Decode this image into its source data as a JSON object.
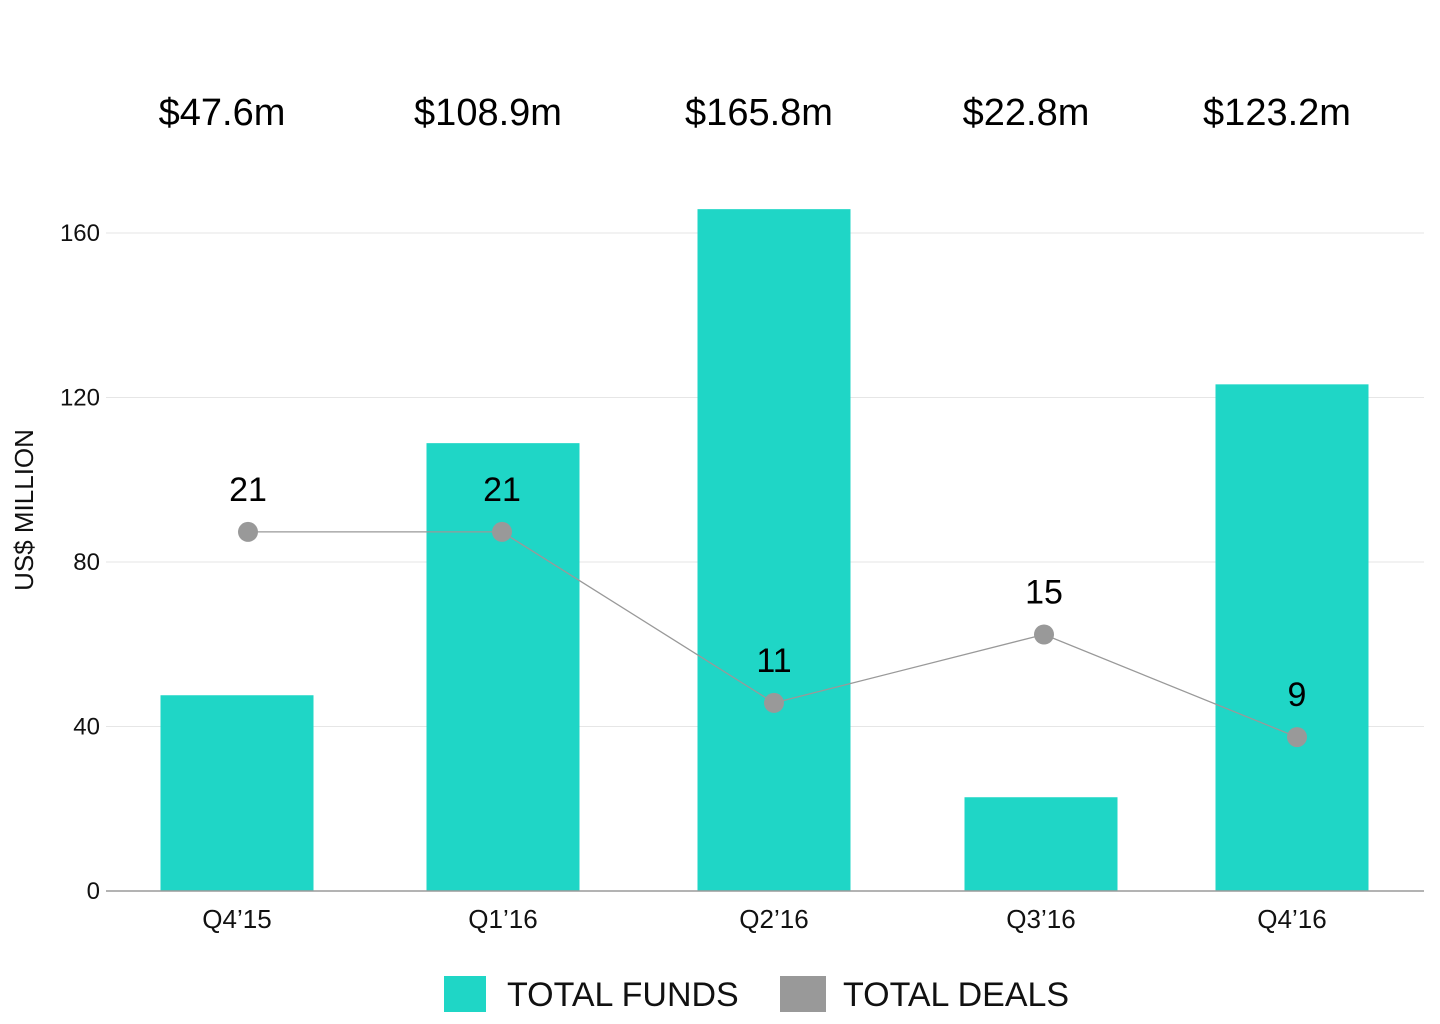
{
  "chart_data": {
    "type": "bar",
    "categories": [
      "Q4’15",
      "Q1’16",
      "Q2’16",
      "Q3’16",
      "Q4’16"
    ],
    "series": [
      {
        "name": "TOTAL FUNDS",
        "type": "bar",
        "values": [
          47.6,
          108.9,
          165.8,
          22.8,
          123.2
        ],
        "color": "#1fd6c6"
      },
      {
        "name": "TOTAL DEALS",
        "type": "line",
        "values": [
          21,
          21,
          11,
          15,
          9
        ],
        "color": "#999999"
      }
    ],
    "total_labels": [
      "$47.6m",
      "$108.9m",
      "$165.8m",
      "$22.8m",
      "$123.2m"
    ],
    "ylabel": "US$ MILLION",
    "ylim": [
      0,
      160
    ],
    "yticks": [
      0,
      40,
      80,
      120,
      160
    ],
    "grid": true,
    "legend": "bottom-center"
  }
}
